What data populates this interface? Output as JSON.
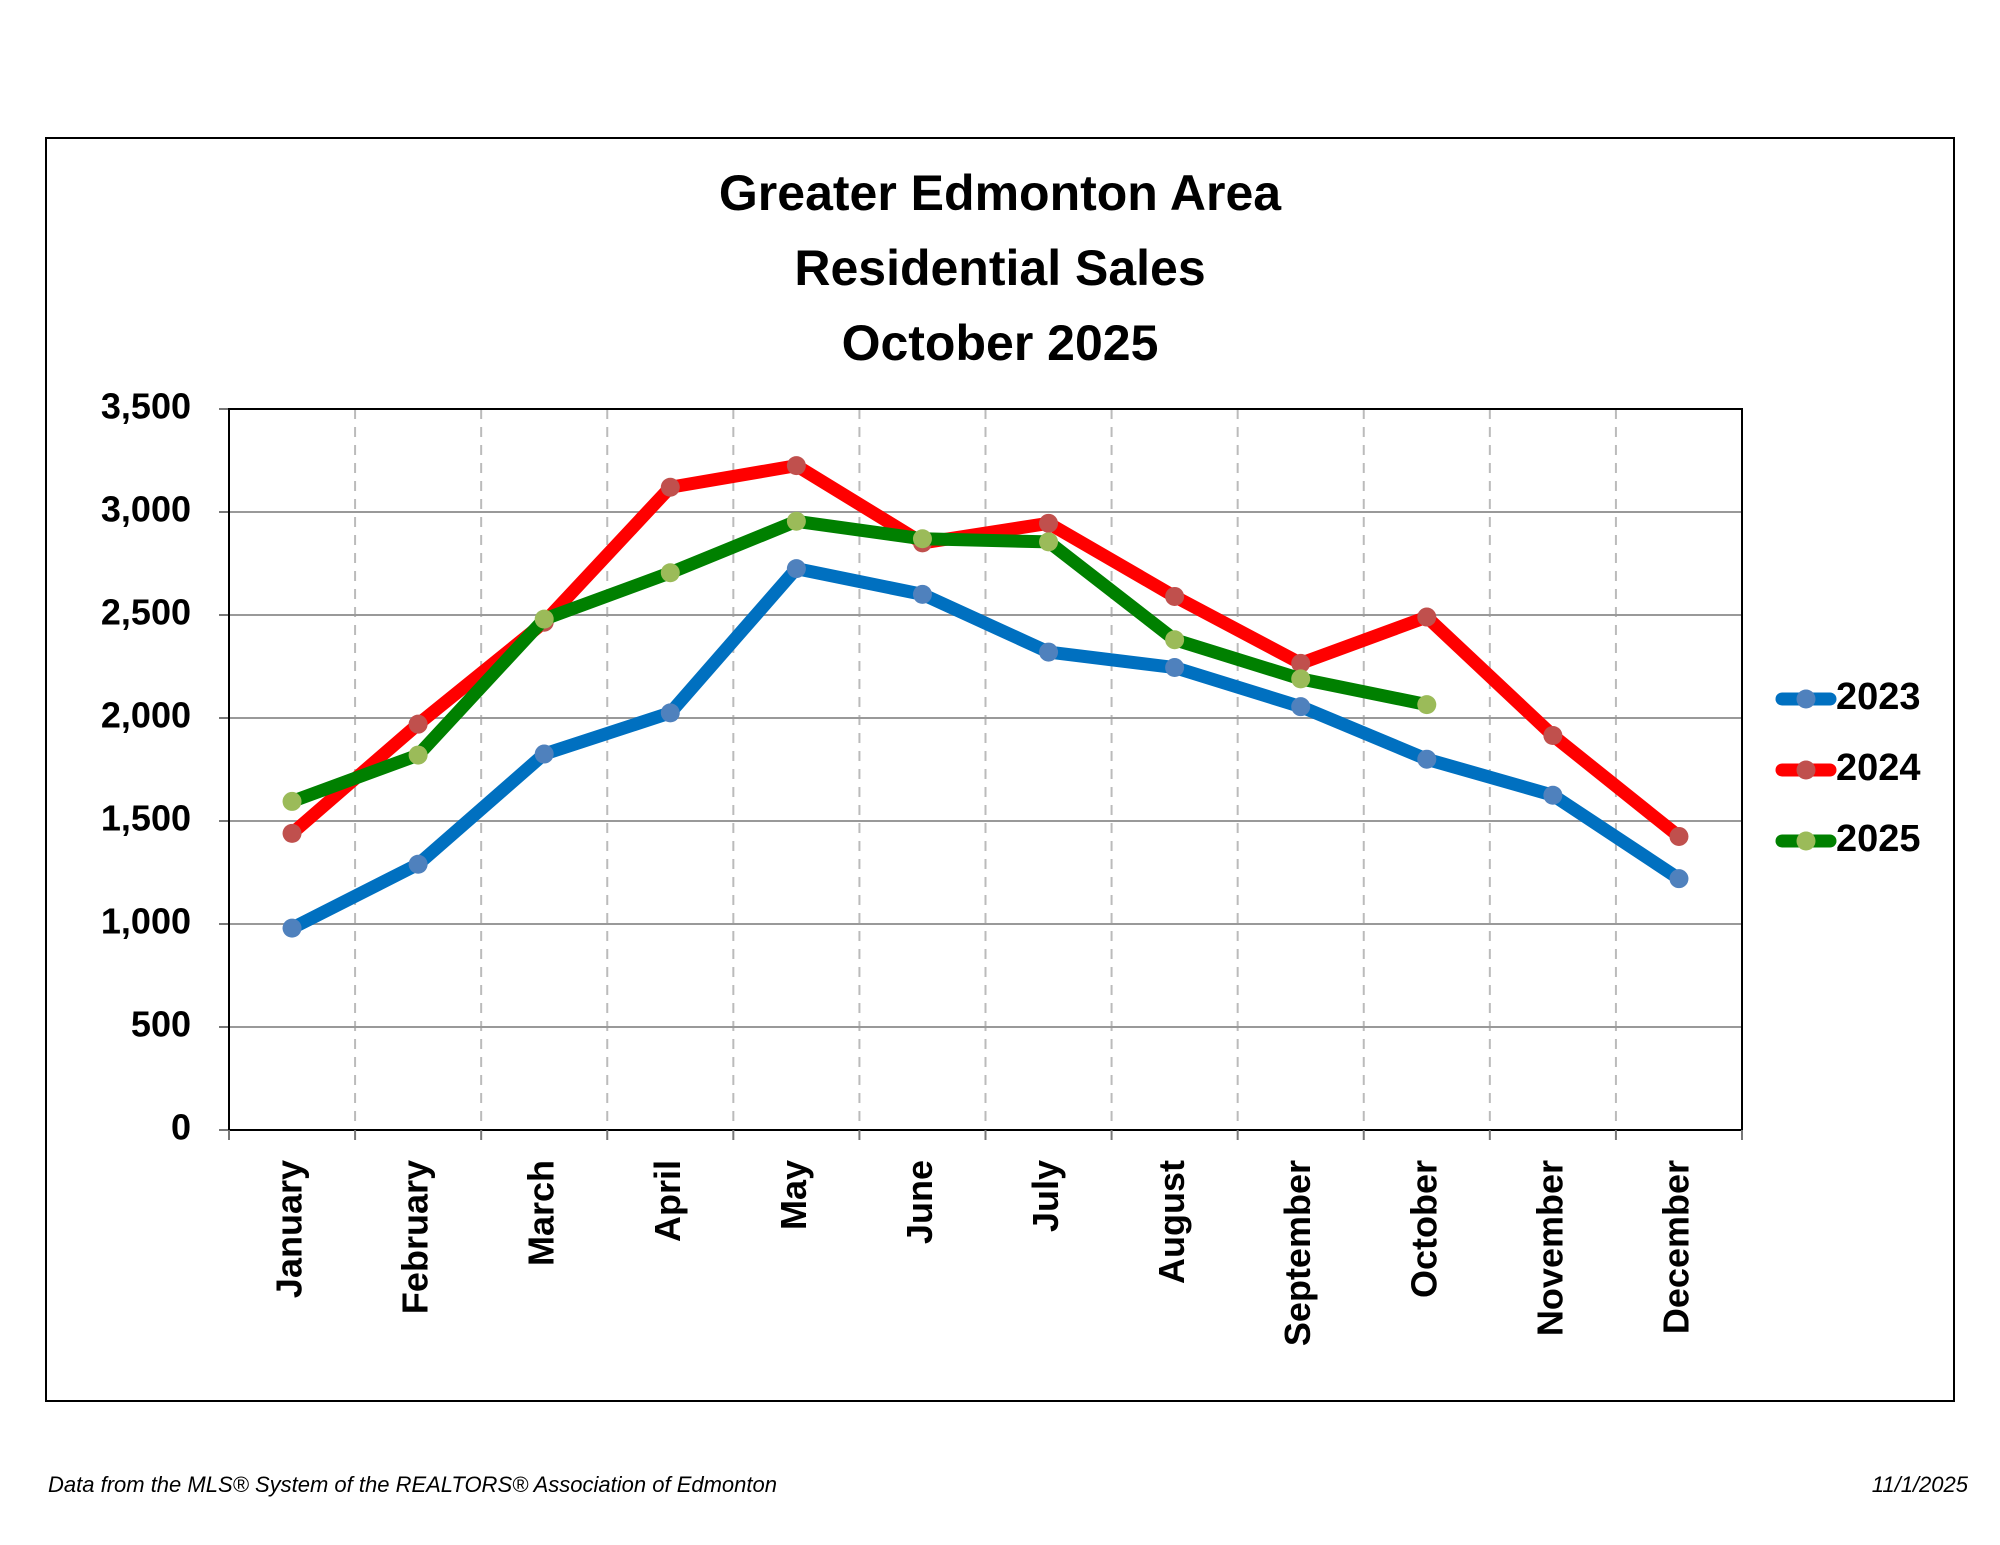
{
  "chart_data": {
    "type": "line",
    "title": [
      "Greater Edmonton Area",
      "Residential Sales",
      "October 2025"
    ],
    "categories": [
      "January",
      "February",
      "March",
      "April",
      "May",
      "June",
      "July",
      "August",
      "September",
      "October",
      "November",
      "December"
    ],
    "series": [
      {
        "name": "2023",
        "color": "#0070c0",
        "marker_color": "#4f81bd",
        "values": [
          980,
          1290,
          1825,
          2025,
          2725,
          2600,
          2320,
          2245,
          2055,
          1800,
          1625,
          1220
        ]
      },
      {
        "name": "2024",
        "color": "#ff0000",
        "marker_color": "#c0504d",
        "values": [
          1440,
          1970,
          2465,
          3120,
          3225,
          2850,
          2945,
          2590,
          2265,
          2490,
          1915,
          1425
        ]
      },
      {
        "name": "2025",
        "color": "#008000",
        "marker_color": "#9bbb59",
        "values": [
          1595,
          1820,
          2480,
          2705,
          2955,
          2870,
          2855,
          2380,
          2190,
          2065,
          null,
          null
        ]
      }
    ],
    "ylim": [
      0,
      3500
    ],
    "yticks": [
      0,
      500,
      {
        "value": 1000,
        "label": "1,000"
      },
      {
        "value": 1500,
        "label": "1,500"
      },
      {
        "value": 2000,
        "label": "2,000"
      },
      {
        "value": 2500,
        "label": "2,500"
      },
      {
        "value": 3000,
        "label": "3,000"
      },
      {
        "value": 3500,
        "label": "3,500"
      }
    ],
    "grid": true,
    "legend": "right"
  },
  "footer": {
    "source": "Data from the MLS® System of the REALTORS® Association of Edmonton",
    "date": "11/1/2025"
  }
}
